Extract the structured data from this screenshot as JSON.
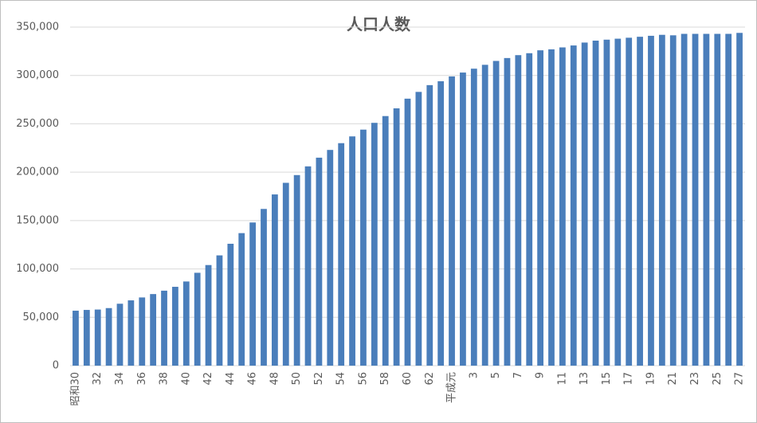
{
  "chart_data": {
    "type": "bar",
    "title": "人口人数",
    "categories": [
      "昭和30",
      null,
      "32",
      null,
      "34",
      null,
      "36",
      null,
      "38",
      null,
      "40",
      null,
      "42",
      null,
      "44",
      null,
      "46",
      null,
      "48",
      null,
      "50",
      null,
      "52",
      null,
      "54",
      null,
      "56",
      null,
      "58",
      null,
      "60",
      null,
      "62",
      null,
      "平成元",
      null,
      "3",
      null,
      "5",
      null,
      "7",
      null,
      "9",
      null,
      "11",
      null,
      "13",
      null,
      "15",
      null,
      "17",
      null,
      "19",
      null,
      "21",
      null,
      "23",
      null,
      "25",
      null,
      "27"
    ],
    "values": [
      56800,
      57600,
      58000,
      59500,
      64000,
      67500,
      70500,
      74000,
      77500,
      81500,
      87000,
      96000,
      104000,
      114000,
      126000,
      137000,
      148000,
      162000,
      177000,
      189000,
      197000,
      206000,
      215000,
      223000,
      230000,
      237000,
      244000,
      251000,
      258000,
      266000,
      276000,
      283000,
      290000,
      294000,
      299000,
      303000,
      307000,
      311000,
      315000,
      318000,
      321000,
      323000,
      326000,
      327000,
      329000,
      331000,
      334000,
      336000,
      337000,
      338000,
      339000,
      340000,
      341000,
      342000,
      341500,
      343000,
      343000,
      343000,
      343000,
      343000,
      344000
    ],
    "color": "#4a7ebb",
    "ylim": [
      0,
      350000
    ],
    "yticks": [
      0,
      {
        "value": 50000,
        "label": "50,000"
      },
      {
        "value": 100000,
        "label": "100,000"
      },
      {
        "value": 150000,
        "label": "150,000"
      },
      {
        "value": 200000,
        "label": "200,000"
      },
      {
        "value": 250000,
        "label": "250,000"
      },
      {
        "value": 300000,
        "label": "300,000"
      },
      {
        "value": 350000,
        "label": "350,000"
      }
    ],
    "grid": true
  }
}
